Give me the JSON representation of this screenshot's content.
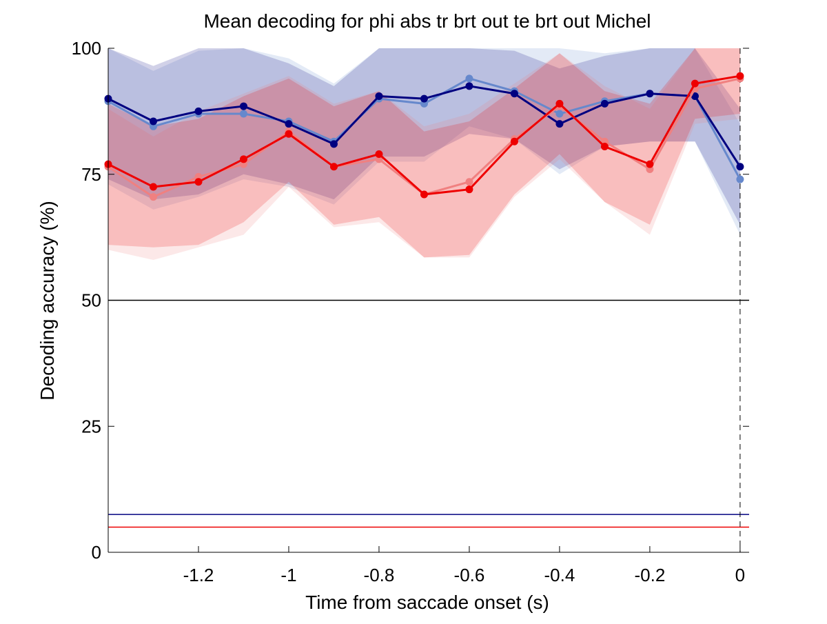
{
  "chart_data": {
    "type": "line",
    "title": "Mean decoding for phi abs tr brt out te brt out  Michel",
    "xlabel": "Time from saccade onset (s)",
    "ylabel": "Decoding accuracy (%)",
    "xlim": [
      -1.4,
      0.02
    ],
    "ylim": [
      0,
      100
    ],
    "xticks": [
      -1.2,
      -1,
      -0.8,
      -0.6,
      -0.4,
      -0.2,
      0
    ],
    "xtick_labels": [
      "-1.2",
      "-1",
      "-0.8",
      "-0.6",
      "-0.4",
      "-0.2",
      "0"
    ],
    "yticks": [
      0,
      25,
      50,
      75,
      100
    ],
    "ytick_labels": [
      "0",
      "25",
      "50",
      "75",
      "100"
    ],
    "grid": false,
    "legend": "none",
    "x": [
      -1.4,
      -1.3,
      -1.2,
      -1.1,
      -1.0,
      -0.9,
      -0.8,
      -0.7,
      -0.6,
      -0.5,
      -0.4,
      -0.3,
      -0.2,
      -0.1,
      0.0
    ],
    "series": [
      {
        "color": "#6688cc",
        "values": [
          89.5,
          84.5,
          87.0,
          87.0,
          85.5,
          81.5,
          90.0,
          89.0,
          94.0,
          91.5,
          87.0,
          89.5,
          91.0,
          90.5,
          74.0
        ],
        "band_lower": [
          73.0,
          68.0,
          70.5,
          74.0,
          72.5,
          69.0,
          77.5,
          77.5,
          84.5,
          82.0,
          75.0,
          80.5,
          81.5,
          81.5,
          63.0
        ],
        "band_upper": [
          100.0,
          95.5,
          99.5,
          100.0,
          98.0,
          93.0,
          100.0,
          100.0,
          100.0,
          100.0,
          100.0,
          99.0,
          100.0,
          100.0,
          85.0
        ]
      },
      {
        "color": "#000080",
        "values": [
          90.0,
          85.5,
          87.5,
          88.5,
          85.0,
          81.0,
          90.5,
          90.0,
          92.5,
          91.0,
          85.0,
          89.0,
          91.0,
          90.5,
          76.5
        ],
        "band_lower": [
          74.0,
          70.0,
          71.0,
          75.0,
          73.0,
          70.0,
          78.5,
          78.5,
          83.0,
          82.0,
          76.0,
          80.5,
          81.5,
          81.5,
          65.0
        ],
        "band_upper": [
          100.0,
          96.5,
          100.0,
          100.0,
          97.0,
          92.5,
          100.0,
          100.0,
          100.0,
          99.5,
          96.0,
          98.5,
          100.0,
          100.0,
          88.0
        ]
      },
      {
        "color": "#f08080",
        "values": [
          76.5,
          70.5,
          74.5,
          77.0,
          83.5,
          76.5,
          78.0,
          71.0,
          73.5,
          82.0,
          88.5,
          81.5,
          76.0,
          92.0,
          94.0
        ],
        "band_lower": [
          60.0,
          58.0,
          60.5,
          63.0,
          72.5,
          64.5,
          65.5,
          58.5,
          58.5,
          70.5,
          78.0,
          69.5,
          63.0,
          85.0,
          86.0
        ],
        "band_upper": [
          88.0,
          82.5,
          87.5,
          91.0,
          94.5,
          89.0,
          91.5,
          84.5,
          87.0,
          93.0,
          99.0,
          92.5,
          88.0,
          100.0,
          100.0
        ]
      },
      {
        "color": "#ee0000",
        "values": [
          77.0,
          72.5,
          73.5,
          78.0,
          83.0,
          76.5,
          79.0,
          71.0,
          72.0,
          81.5,
          89.0,
          80.5,
          77.0,
          93.0,
          94.5
        ],
        "band_lower": [
          61.0,
          60.5,
          61.0,
          65.5,
          73.5,
          65.0,
          66.5,
          58.5,
          59.0,
          71.0,
          79.0,
          69.5,
          65.0,
          86.0,
          87.0
        ],
        "band_upper": [
          89.0,
          84.5,
          86.0,
          90.5,
          94.0,
          88.5,
          91.5,
          83.5,
          85.5,
          92.0,
          99.0,
          91.5,
          89.0,
          100.0,
          100.0
        ]
      }
    ],
    "reference_lines": [
      {
        "y": 50,
        "color": "#000000"
      },
      {
        "y": 7.5,
        "color": "#000080"
      },
      {
        "y": 5.0,
        "color": "#ee0000"
      }
    ],
    "vertical_dashed_line_x": 0.0
  }
}
